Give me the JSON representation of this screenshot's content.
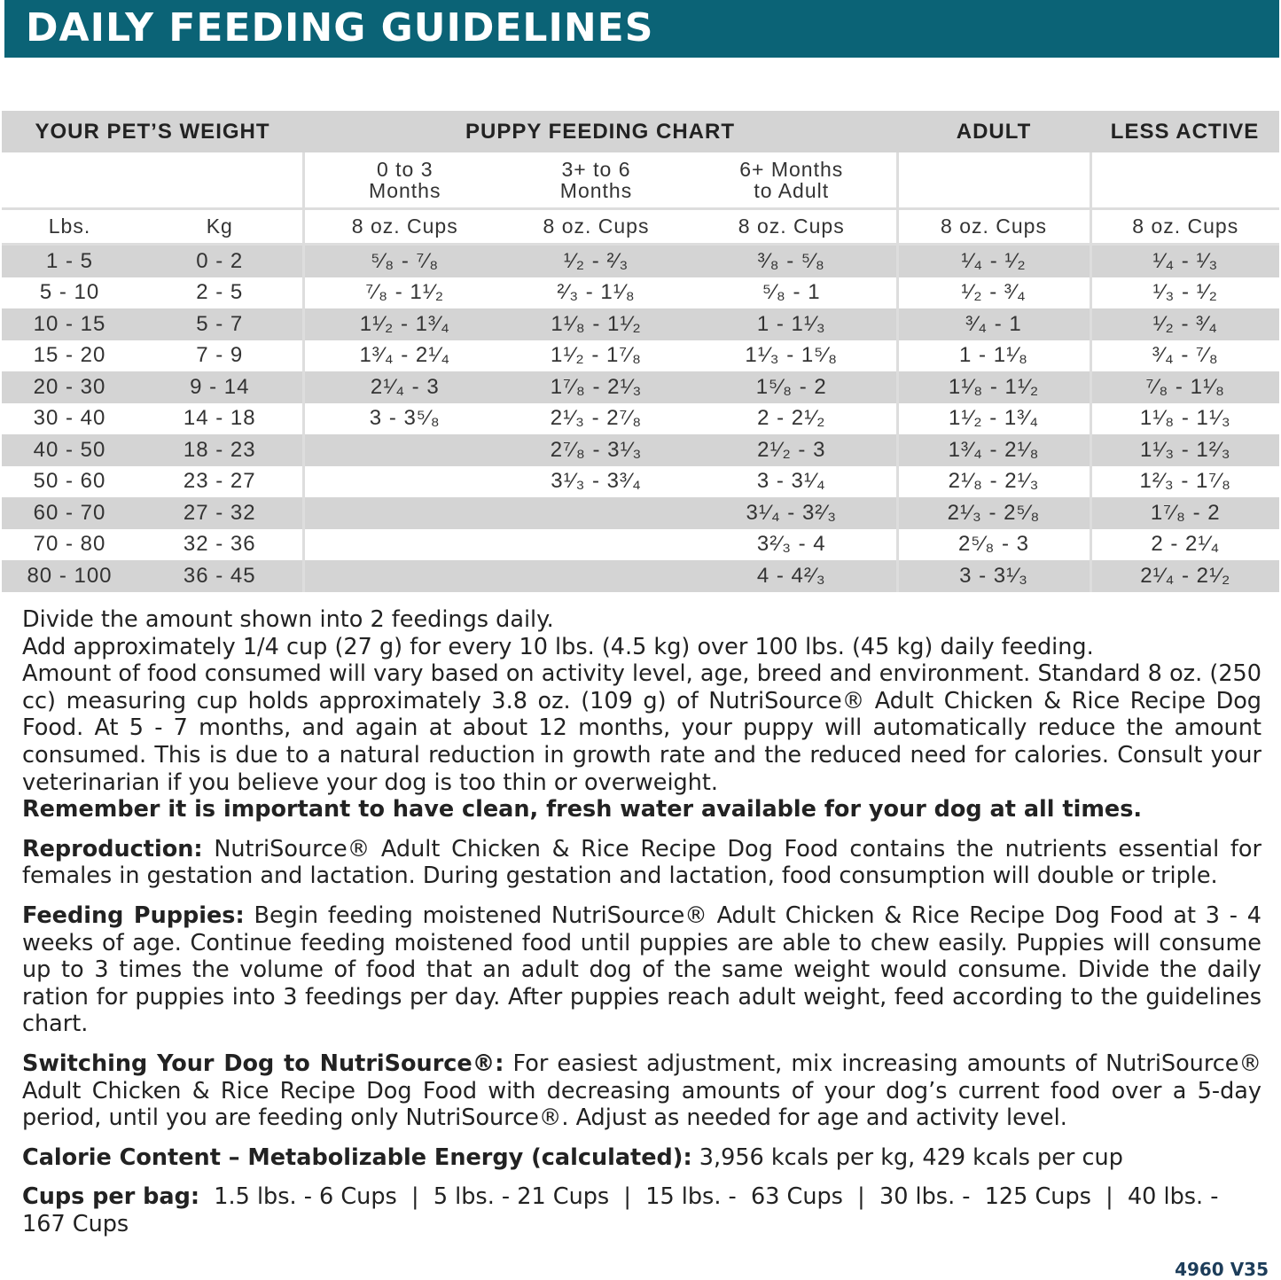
{
  "title": "DAILY FEEDING GUIDELINES",
  "table": {
    "headers": [
      "YOUR PET’S WEIGHT",
      "PUPPY FEEDING CHART",
      "ADULT",
      "LESS ACTIVE"
    ],
    "age_groups": [
      "0 to 3 Months",
      "3+ to 6 Months",
      "6+ Months to Adult"
    ],
    "units": [
      "Lbs.",
      "Kg",
      "8 oz. Cups",
      "8 oz. Cups",
      "8 oz. Cups",
      "8 oz. Cups",
      "8 oz. Cups"
    ],
    "rows": [
      [
        "1 - 5",
        "0 - 2",
        "⁵⁄₈ - ⁷⁄₈",
        "¹⁄₂ - ²⁄₃",
        "³⁄₈ - ⁵⁄₈",
        "¹⁄₄ - ¹⁄₂",
        "¹⁄₄ - ¹⁄₃"
      ],
      [
        "5 - 10",
        "2 - 5",
        "⁷⁄₈ - 1¹⁄₂",
        "²⁄₃ - 1¹⁄₈",
        "⁵⁄₈ - 1",
        "¹⁄₂ - ³⁄₄",
        "¹⁄₃ - ¹⁄₂"
      ],
      [
        "10 - 15",
        "5 - 7",
        "1¹⁄₂ - 1³⁄₄",
        "1¹⁄₈ - 1¹⁄₂",
        "1 - 1¹⁄₃",
        "³⁄₄ - 1",
        "¹⁄₂ - ³⁄₄"
      ],
      [
        "15 - 20",
        "7 - 9",
        "1³⁄₄ - 2¹⁄₄",
        "1¹⁄₂ - 1⁷⁄₈",
        "1¹⁄₃ - 1⁵⁄₈",
        "1 - 1¹⁄₈",
        "³⁄₄ - ⁷⁄₈"
      ],
      [
        "20 - 30",
        "9 - 14",
        "2¹⁄₄ - 3",
        "1⁷⁄₈ - 2¹⁄₃",
        "1⁵⁄₈ - 2",
        "1¹⁄₈ - 1¹⁄₂",
        "⁷⁄₈ - 1¹⁄₈"
      ],
      [
        "30 - 40",
        "14 - 18",
        "3 - 3⁵⁄₈",
        "2¹⁄₃ - 2⁷⁄₈",
        "2 - 2¹⁄₂",
        "1¹⁄₂ - 1³⁄₄",
        "1¹⁄₈ - 1¹⁄₃"
      ],
      [
        "40 - 50",
        "18 - 23",
        "",
        "2⁷⁄₈ - 3¹⁄₃",
        "2¹⁄₂ - 3",
        "1³⁄₄ - 2¹⁄₈",
        "1¹⁄₃ - 1²⁄₃"
      ],
      [
        "50 - 60",
        "23 - 27",
        "",
        "3¹⁄₃ - 3³⁄₄",
        "3 - 3¹⁄₄",
        "2¹⁄₈ - 2¹⁄₃",
        "1²⁄₃ - 1⁷⁄₈"
      ],
      [
        "60 - 70",
        "27 - 32",
        "",
        "",
        "3¹⁄₄ - 3²⁄₃",
        "2¹⁄₃ - 2⁵⁄₈",
        "1⁷⁄₈ - 2"
      ],
      [
        "70 - 80",
        "32 - 36",
        "",
        "",
        "3²⁄₃ - 4",
        "2⁵⁄₈ - 3",
        "2 - 2¹⁄₄"
      ],
      [
        "80 - 100",
        "36 - 45",
        "",
        "",
        "4 - 4²⁄₃",
        "3 - 3¹⁄₃",
        "2¹⁄₄ - 2¹⁄₂"
      ]
    ]
  },
  "notes": {
    "p1": "Divide the amount shown into 2 feedings daily.",
    "p2": "Add approximately 1/4 cup (27 g) for every 10 lbs. (4.5 kg) over 100 lbs. (45 kg) daily feeding.",
    "p3": "Amount of food consumed will vary based on activity level, age, breed and environment. Standard 8 oz. (250 cc) measuring cup holds approximately 3.8 oz. (109 g)  of NutriSource® Adult Chicken & Rice Recipe Dog Food. At 5 - 7 months, and again at about 12 months, your puppy will automatically reduce the amount consumed. This is due to a natural reduction in growth rate and the reduced need for calories. Consult your veterinarian if you believe your dog is too thin or overweight.",
    "p4": "Remember it is important to have clean, fresh water available for your dog at all times.",
    "reproduction_label": "Reproduction:",
    "reproduction": " NutriSource® Adult Chicken & Rice Recipe Dog Food contains the nutrients essential for females in gestation and lactation. During gestation and lactation, food consumption will double or triple.",
    "puppies_label": "Feeding Puppies:",
    "puppies": " Begin feeding moistened NutriSource® Adult Chicken & Rice Recipe Dog Food at 3 - 4 weeks of age. Continue feeding moistened food until puppies are able to chew easily. Puppies will consume up to 3 times the volume of food that an adult dog of the same weight would consume. Divide the daily ration for puppies into 3 feedings per day. After puppies reach adult weight, feed according to the guidelines chart.",
    "switching_label": "Switching Your Dog to NutriSource®:",
    "switching": " For easiest adjustment, mix increasing amounts of NutriSource® Adult Chicken & Rice Recipe Dog Food with decreasing amounts of your dog’s current food over a 5-day period, until you are feeding only NutriSource®. Adjust as needed for age and activity level.",
    "calorie_label": "Calorie Content – Metabolizable Energy (calculated):",
    "calorie": " 3,956 kcals per kg, 429 kcals per cup",
    "cups_label": "Cups per bag:",
    "cups": "  1.5 lbs. - 6 Cups  |  5 lbs. - 21 Cups  |  15 lbs. -  63 Cups  |  30 lbs. -  125 Cups  |  40 lbs. - 167 Cups"
  },
  "code": "4960 V35",
  "colors": {
    "title_bar": "#0b6376",
    "row_stripe": "#d4d4d4"
  }
}
